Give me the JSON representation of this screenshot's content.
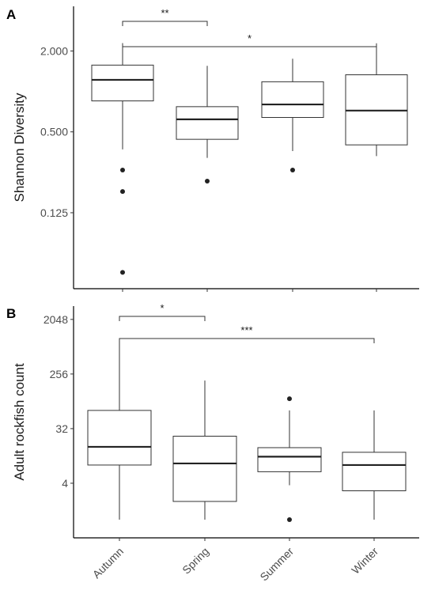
{
  "chart_data": [
    {
      "panel": "A",
      "type": "boxplot",
      "ylabel": "Shannon Diversity",
      "y_scale": "log2",
      "y_ticks": [
        "2.000",
        "0.500",
        "0.125"
      ],
      "y_tick_values": [
        2.0,
        0.5,
        0.125
      ],
      "ylim": [
        0.034,
        4.3
      ],
      "categories": [
        "Autumn",
        "Spring",
        "Summer",
        "Winter"
      ],
      "boxes": [
        {
          "category": "Autumn",
          "whisker_low": 0.37,
          "q1": 0.85,
          "median": 1.22,
          "q3": 1.57,
          "whisker_high": 2.29,
          "outliers": [
            0.26,
            0.18,
            0.045
          ]
        },
        {
          "category": "Spring",
          "whisker_low": 0.32,
          "q1": 0.44,
          "median": 0.62,
          "q3": 0.77,
          "whisker_high": 1.55,
          "outliers": [
            0.215
          ]
        },
        {
          "category": "Summer",
          "whisker_low": 0.36,
          "q1": 0.64,
          "median": 0.8,
          "q3": 1.18,
          "whisker_high": 1.75,
          "outliers": [
            0.26
          ]
        },
        {
          "category": "Winter",
          "whisker_low": 0.33,
          "q1": 0.4,
          "median": 0.72,
          "q3": 1.33,
          "whisker_high": 2.28,
          "outliers": []
        }
      ],
      "significance": [
        {
          "from": "Autumn",
          "to": "Spring",
          "label": "**"
        },
        {
          "from": "Autumn",
          "to": "Winter",
          "label": "*"
        }
      ],
      "grid": false
    },
    {
      "panel": "B",
      "type": "boxplot",
      "ylabel": "Adult rockfish count",
      "y_scale": "log2",
      "y_ticks": [
        "2048",
        "256",
        "32",
        "4"
      ],
      "y_tick_values": [
        2048,
        256,
        32,
        4
      ],
      "ylim": [
        0.5,
        3400
      ],
      "categories": [
        "Autumn",
        "Spring",
        "Summer",
        "Winter"
      ],
      "boxes": [
        {
          "category": "Autumn",
          "whisker_low": 1,
          "q1": 8,
          "median": 16,
          "q3": 64,
          "whisker_high": 1000,
          "outliers": []
        },
        {
          "category": "Spring",
          "whisker_low": 1,
          "q1": 2,
          "median": 8.5,
          "q3": 24,
          "whisker_high": 200,
          "outliers": []
        },
        {
          "category": "Summer",
          "whisker_low": 3.7,
          "q1": 6.2,
          "median": 11,
          "q3": 15.5,
          "whisker_high": 64,
          "outliers": [
            100,
            1
          ]
        },
        {
          "category": "Winter",
          "whisker_low": 1,
          "q1": 3,
          "median": 8,
          "q3": 13,
          "whisker_high": 64,
          "outliers": []
        }
      ],
      "significance": [
        {
          "from": "Autumn",
          "to": "Spring",
          "label": "*"
        },
        {
          "from": "Autumn",
          "to": "Winter",
          "label": "***"
        }
      ],
      "grid": false
    }
  ]
}
